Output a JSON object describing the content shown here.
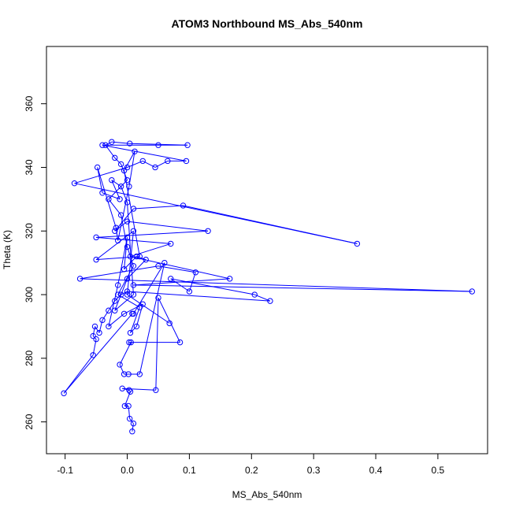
{
  "chart_data": {
    "type": "line",
    "title": "ATOM3 Northbound MS_Abs_540nm",
    "xlabel": "MS_Abs_540nm",
    "ylabel": "Theta (K)",
    "xlim": [
      -0.13,
      0.58
    ],
    "ylim": [
      250,
      378
    ],
    "xticks": [
      -0.1,
      0.0,
      0.1,
      0.2,
      0.3,
      0.4,
      0.5
    ],
    "xtick_labels": [
      "-0.1",
      "0.0",
      "0.1",
      "0.2",
      "0.3",
      "0.4",
      "0.5"
    ],
    "yticks": [
      260,
      280,
      300,
      320,
      340,
      360
    ],
    "ytick_labels": [
      "260",
      "280",
      "300",
      "320",
      "340",
      "360"
    ],
    "grid": false,
    "series": [
      {
        "color": "#0000ff",
        "marker": "open-circle",
        "points": [
          [
            0.008,
            257
          ],
          [
            0.01,
            259.5
          ],
          [
            0.004,
            261
          ],
          [
            0.002,
            265
          ],
          [
            -0.004,
            265
          ],
          [
            0.005,
            269.5
          ],
          [
            0.003,
            270
          ],
          [
            -0.008,
            270.5
          ],
          [
            0.046,
            270
          ],
          [
            0.05,
            299
          ],
          [
            0.085,
            285
          ],
          [
            0.003,
            285
          ],
          [
            0.006,
            285
          ],
          [
            -0.012,
            278
          ],
          [
            -0.005,
            275
          ],
          [
            0.002,
            275
          ],
          [
            0.02,
            275
          ],
          [
            0.06,
            310
          ],
          [
            0.01,
            294
          ],
          [
            0.008,
            294
          ],
          [
            -0.102,
            269
          ],
          [
            -0.055,
            281
          ],
          [
            -0.05,
            286
          ],
          [
            -0.055,
            287
          ],
          [
            -0.052,
            290
          ],
          [
            -0.045,
            288
          ],
          [
            -0.04,
            292
          ],
          [
            -0.03,
            295
          ],
          [
            -0.02,
            298
          ],
          [
            -0.01,
            300
          ],
          [
            0.0,
            301
          ],
          [
            0.23,
            298
          ],
          [
            0.205,
            300
          ],
          [
            0.07,
            305
          ],
          [
            0.1,
            301
          ],
          [
            0.11,
            307
          ],
          [
            0.05,
            309
          ],
          [
            -0.076,
            305
          ],
          [
            0.555,
            301
          ],
          [
            0.01,
            303
          ],
          [
            0.165,
            305
          ],
          [
            0.005,
            312
          ],
          [
            0.07,
            316
          ],
          [
            -0.05,
            318
          ],
          [
            0.13,
            320
          ],
          [
            0.0,
            323
          ],
          [
            -0.02,
            320
          ],
          [
            0.01,
            327
          ],
          [
            0.09,
            328
          ],
          [
            0.37,
            316
          ],
          [
            -0.085,
            335
          ],
          [
            0.0,
            340
          ],
          [
            0.025,
            342
          ],
          [
            0.045,
            340
          ],
          [
            0.065,
            342
          ],
          [
            0.095,
            342
          ],
          [
            -0.04,
            347
          ],
          [
            0.05,
            347
          ],
          [
            0.097,
            347
          ],
          [
            0.004,
            347.5
          ],
          [
            -0.025,
            348
          ],
          [
            -0.035,
            347
          ],
          [
            -0.02,
            343
          ],
          [
            -0.01,
            341
          ],
          [
            0.0,
            336
          ],
          [
            -0.03,
            330
          ],
          [
            -0.01,
            325
          ],
          [
            0.0,
            315
          ],
          [
            0.01,
            309
          ],
          [
            -0.015,
            300
          ],
          [
            0.02,
            296
          ],
          [
            0.005,
            288
          ],
          [
            0.015,
            290
          ],
          [
            0.025,
            297
          ],
          [
            -0.005,
            294
          ],
          [
            -0.03,
            290
          ],
          [
            -0.015,
            303
          ],
          [
            0.0,
            318
          ],
          [
            -0.005,
            308
          ],
          [
            0.015,
            312
          ],
          [
            0.03,
            311
          ],
          [
            0.0,
            305
          ],
          [
            -0.02,
            295
          ],
          [
            0.01,
            300
          ],
          [
            0.0,
            329
          ],
          [
            -0.01,
            334
          ],
          [
            -0.025,
            336
          ],
          [
            -0.012,
            330
          ],
          [
            -0.04,
            332
          ],
          [
            -0.048,
            340
          ],
          [
            -0.018,
            321
          ],
          [
            -0.015,
            317
          ],
          [
            0.003,
            334
          ],
          [
            0.012,
            345
          ],
          [
            -0.005,
            339
          ],
          [
            0.02,
            312
          ],
          [
            -0.05,
            311
          ],
          [
            0.01,
            320
          ],
          [
            0.0,
            300
          ],
          [
            0.068,
            291
          ]
        ]
      }
    ]
  }
}
